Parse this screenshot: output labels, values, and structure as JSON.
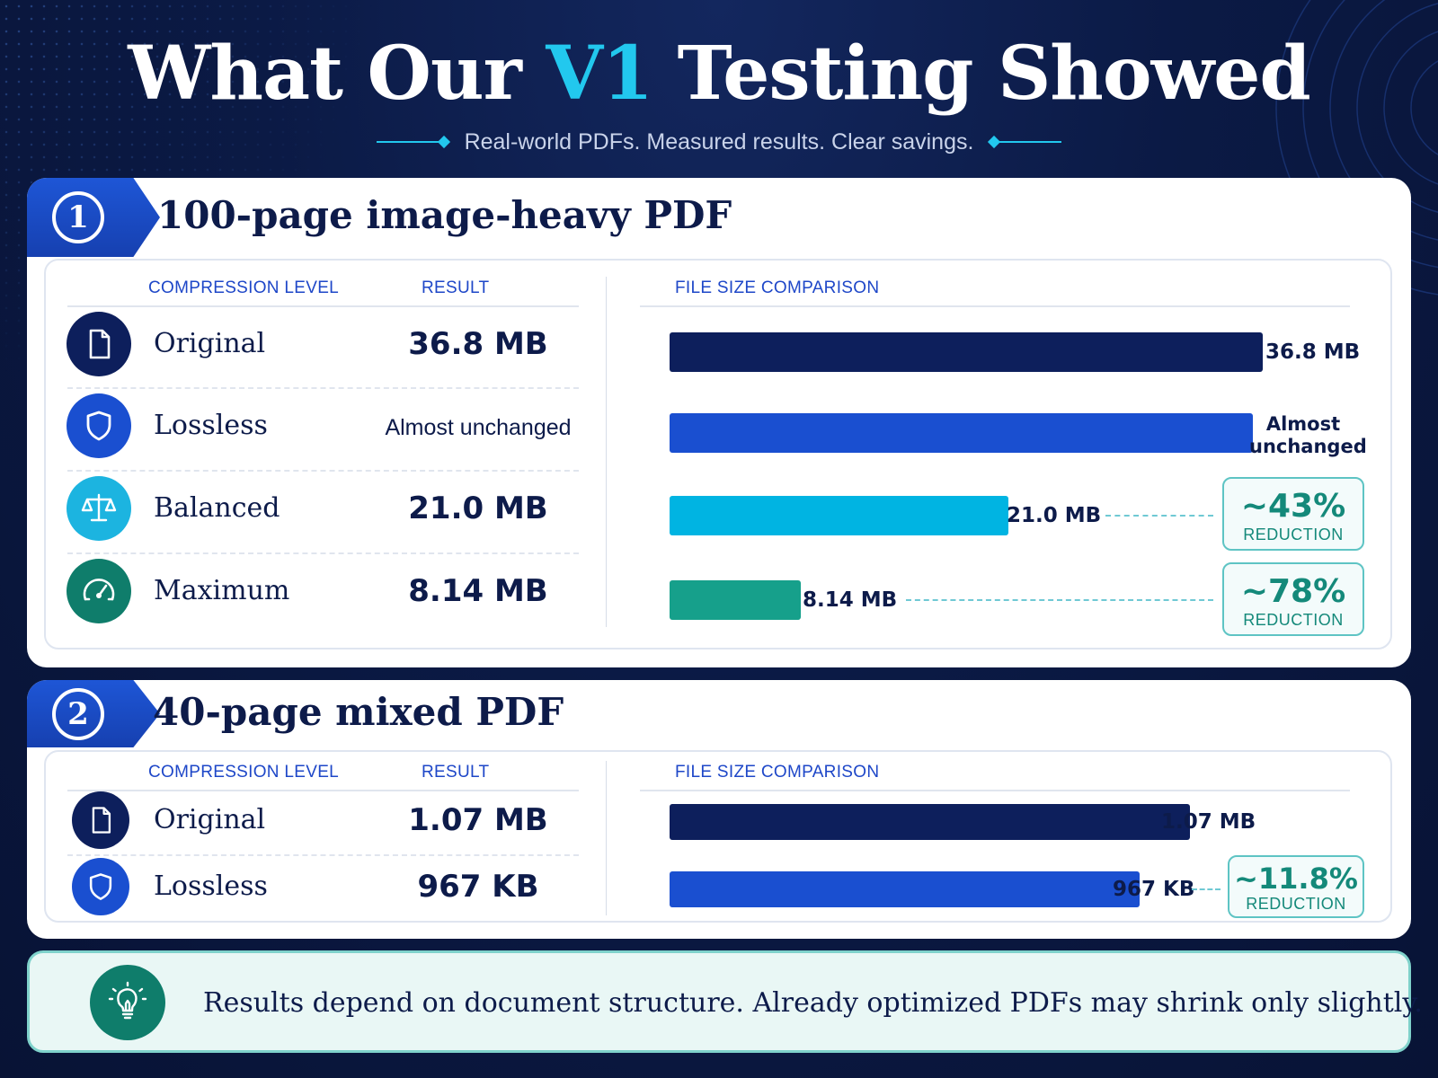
{
  "header": {
    "title_pre": "What Our ",
    "title_accent": "V1",
    "title_post": " Testing Showed",
    "subtitle": "Real-world PDFs. Measured results. Clear savings."
  },
  "columns": {
    "level": "COMPRESSION LEVEL",
    "result": "RESULT",
    "comparison": "FILE SIZE COMPARISON"
  },
  "colors": {
    "original": "#0d1f5c",
    "lossless": "#1a4fd0",
    "balanced": "#00b4e2",
    "maximum": "#16a08b",
    "reduction": "#14897a"
  },
  "tests": [
    {
      "number": "1",
      "title": "100-page image-heavy PDF",
      "rows": [
        {
          "level": "Original",
          "icon": "document-icon",
          "result": "36.8 MB",
          "bar_label": "36.8 MB"
        },
        {
          "level": "Lossless",
          "icon": "shield-icon",
          "result": "Almost unchanged",
          "bar_label_line1": "Almost",
          "bar_label_line2": "unchanged"
        },
        {
          "level": "Balanced",
          "icon": "scale-icon",
          "result": "21.0 MB",
          "bar_label": "21.0 MB",
          "reduction": "~43%",
          "reduction_word": "REDUCTION"
        },
        {
          "level": "Maximum",
          "icon": "speedometer-icon",
          "result": "8.14 MB",
          "bar_label": "8.14 MB",
          "reduction": "~78%",
          "reduction_word": "REDUCTION"
        }
      ]
    },
    {
      "number": "2",
      "title": "40-page mixed PDF",
      "rows": [
        {
          "level": "Original",
          "icon": "document-icon",
          "result": "1.07 MB",
          "bar_label": "1.07 MB"
        },
        {
          "level": "Lossless",
          "icon": "shield-icon",
          "result": "967 KB",
          "bar_label": "967 KB",
          "reduction": "~11.8%",
          "reduction_word": "REDUCTION"
        }
      ]
    }
  ],
  "note": {
    "icon": "lightbulb-icon",
    "text": "Results depend on document structure. Already optimized PDFs may shrink only slightly."
  },
  "chart_data": [
    {
      "type": "bar",
      "title": "100-page image-heavy PDF",
      "xlabel": "FILE SIZE COMPARISON",
      "categories": [
        "Original",
        "Lossless",
        "Balanced",
        "Maximum"
      ],
      "values": [
        36.8,
        36.2,
        21.0,
        8.14
      ],
      "unit": "MB",
      "orientation": "horizontal",
      "xlim": [
        0,
        36.8
      ],
      "grid": false,
      "legend": "none"
    },
    {
      "type": "bar",
      "title": "40-page mixed PDF",
      "xlabel": "FILE SIZE COMPARISON",
      "categories": [
        "Original",
        "Lossless"
      ],
      "values": [
        1.07,
        0.967
      ],
      "unit": "MB",
      "orientation": "horizontal",
      "xlim": [
        0,
        1.22
      ],
      "grid": false,
      "legend": "none"
    }
  ]
}
